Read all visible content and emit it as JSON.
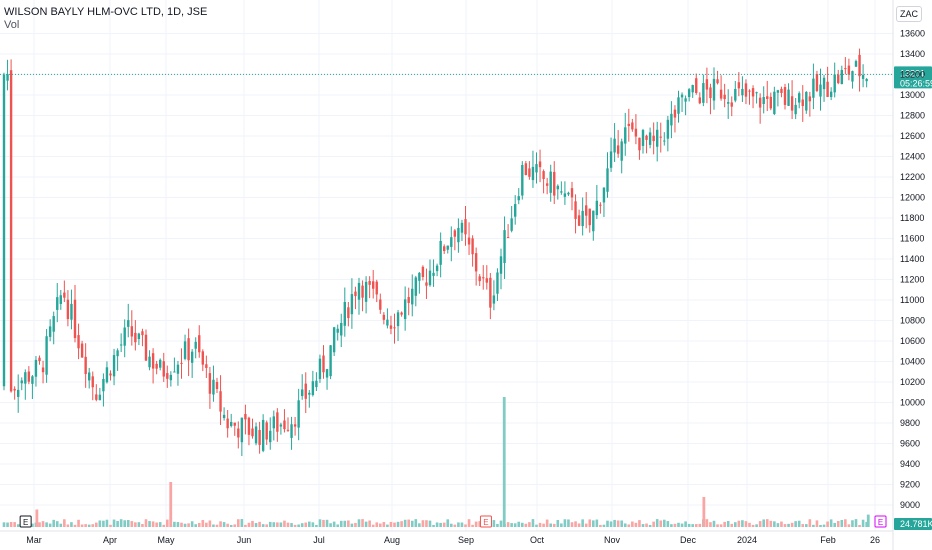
{
  "header": {
    "title": "WILSON BAYLY HLM-OVC LTD, 1D, JSE",
    "indicator": "Vol",
    "currency": "ZAC"
  },
  "price_badge": {
    "price": "13201",
    "countdown": "05:26:59"
  },
  "volume_badge": "24.781K",
  "markers": {
    "earnings": "E"
  },
  "colors": {
    "up": "#26a69a",
    "down": "#ef5350",
    "up_volume": "#80cbc4",
    "down_volume": "#f8a5a3",
    "grid": "#f0f3fa",
    "price_line": "#26a69a",
    "axis_text": "#131722",
    "earnings_future": "#d500f9"
  },
  "chart_data": {
    "type": "candlestick",
    "title": "WILSON BAYLY HLM-OVC LTD, 1D, JSE",
    "ylim": [
      8900,
      13800
    ],
    "grid": true,
    "y_ticks": [
      9000,
      9200,
      9400,
      9600,
      9800,
      10000,
      10200,
      10400,
      10600,
      10800,
      11000,
      11200,
      11400,
      11600,
      11800,
      12000,
      12200,
      12400,
      12600,
      12800,
      13000,
      13200,
      13400,
      13600
    ],
    "x_labels": [
      "Mar",
      "Apr",
      "May",
      "Jun",
      "Jul",
      "Aug",
      "Sep",
      "Oct",
      "Nov",
      "Dec",
      "2024",
      "Feb",
      "26"
    ],
    "last_price": 13201,
    "series": [
      {
        "name": "Price",
        "x": [
          "2023-02-22",
          "2023-03-08",
          "2023-03-17",
          "2023-03-31",
          "2023-04-14",
          "2023-04-28",
          "2023-05-12",
          "2023-05-26",
          "2023-06-09",
          "2023-06-23",
          "2023-07-07",
          "2023-07-21",
          "2023-08-04",
          "2023-08-18",
          "2023-09-01",
          "2023-09-15",
          "2023-09-29",
          "2023-10-13",
          "2023-10-27",
          "2023-11-10",
          "2023-11-24",
          "2023-12-08",
          "2023-12-22",
          "2024-01-05",
          "2024-01-19",
          "2024-02-02",
          "2024-02-16",
          "2024-02-23"
        ],
        "values": [
          10150,
          10350,
          11100,
          10100,
          10700,
          10300,
          10550,
          9800,
          9700,
          9850,
          10400,
          11200,
          10800,
          11200,
          11750,
          11000,
          12300,
          12100,
          11700,
          12650,
          12500,
          13000,
          13050,
          12950,
          12950,
          13050,
          13250,
          13201
        ]
      }
    ],
    "volume": [
      {
        "x": "2023-03-06",
        "value": 35000,
        "dir": "down"
      },
      {
        "x": "2023-05-02",
        "value": 90000,
        "dir": "down"
      },
      {
        "x": "2023-09-21",
        "value": 260000,
        "dir": "up"
      },
      {
        "x": "2023-12-15",
        "value": 60000,
        "dir": "down"
      },
      {
        "x": "2024-02-23",
        "value": 24781,
        "dir": "up"
      }
    ],
    "earnings": [
      "2023-03-01",
      "2023-09-13",
      "2024-02-28"
    ]
  }
}
